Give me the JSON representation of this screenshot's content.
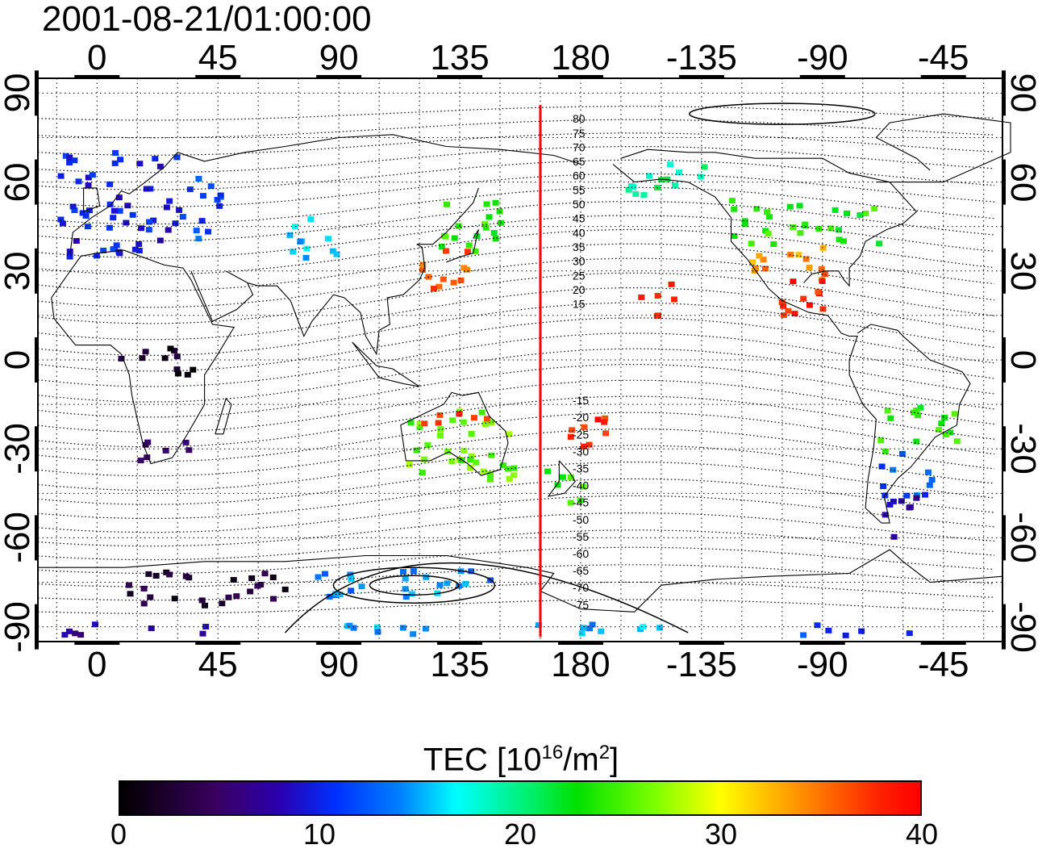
{
  "title": "2001-08-21/01:00:00",
  "map": {
    "projection": "equirectangular",
    "longitude_ticks": [
      "0",
      "45",
      "90",
      "135",
      "180",
      "-135",
      "-90",
      "-45"
    ],
    "latitude_ticks": [
      "90",
      "60",
      "30",
      "0",
      "-30",
      "-60",
      "-90"
    ],
    "longitude_range": [
      -22,
      337
    ],
    "latitude_range": [
      -95,
      95
    ],
    "grid": true,
    "terminator_longitude": 165,
    "terminator_color": "#ff0000",
    "contour_labels": [
      "80",
      "75",
      "70",
      "65",
      "60",
      "55",
      "50",
      "45",
      "40",
      "35",
      "30",
      "25",
      "20",
      "15",
      "-15",
      "-20",
      "-25",
      "-30",
      "-35",
      "-40",
      "-45",
      "-50",
      "-55",
      "-60",
      "-65",
      "-70",
      "-75"
    ]
  },
  "colorbar": {
    "label_main": "TEC  [10",
    "label_exp1": "16",
    "label_mid": "/m",
    "label_exp2": "2",
    "label_end": "]",
    "ticks": [
      "0",
      "10",
      "20",
      "30",
      "40"
    ],
    "range": [
      0,
      40
    ]
  },
  "tec_regions": [
    {
      "lon_min": -15,
      "lon_max": 30,
      "lat_min": 35,
      "lat_max": 72,
      "tec": 10
    },
    {
      "lon_min": 30,
      "lon_max": 45,
      "lat_min": 40,
      "lat_max": 65,
      "tec": 12
    },
    {
      "lon_min": 70,
      "lon_max": 90,
      "lat_min": 35,
      "lat_max": 50,
      "tec": 16
    },
    {
      "lon_min": 125,
      "lon_max": 150,
      "lat_min": 35,
      "lat_max": 55,
      "tec": 24
    },
    {
      "lon_min": 120,
      "lon_max": 145,
      "lat_min": 25,
      "lat_max": 38,
      "tec": 36
    },
    {
      "lon_min": 195,
      "lon_max": 225,
      "lat_min": 55,
      "lat_max": 68,
      "tec": 20
    },
    {
      "lon_min": 235,
      "lon_max": 290,
      "lat_min": 40,
      "lat_max": 55,
      "tec": 24
    },
    {
      "lon_min": 240,
      "lon_max": 270,
      "lat_min": 28,
      "lat_max": 40,
      "tec": 34
    },
    {
      "lon_min": 250,
      "lon_max": 275,
      "lat_min": 15,
      "lat_max": 30,
      "tec": 38
    },
    {
      "lon_min": 200,
      "lon_max": 215,
      "lat_min": 15,
      "lat_max": 27,
      "tec": 39
    },
    {
      "lon_min": 5,
      "lon_max": 35,
      "lat_min": -5,
      "lat_max": 5,
      "tec": 2
    },
    {
      "lon_min": 15,
      "lon_max": 35,
      "lat_min": -35,
      "lat_max": -25,
      "tec": 5
    },
    {
      "lon_min": 115,
      "lon_max": 155,
      "lat_min": -40,
      "lat_max": -15,
      "tec": 26
    },
    {
      "lon_min": 120,
      "lon_max": 145,
      "lat_min": -22,
      "lat_max": -15,
      "tec": 38
    },
    {
      "lon_min": 165,
      "lon_max": 180,
      "lat_min": -48,
      "lat_max": -35,
      "tec": 24
    },
    {
      "lon_min": 175,
      "lon_max": 195,
      "lat_min": -30,
      "lat_max": -18,
      "tec": 38
    },
    {
      "lon_min": 290,
      "lon_max": 320,
      "lat_min": -30,
      "lat_max": -15,
      "tec": 24
    },
    {
      "lon_min": 290,
      "lon_max": 310,
      "lat_min": -45,
      "lat_max": -30,
      "tec": 12
    },
    {
      "lon_min": 290,
      "lon_max": 305,
      "lat_min": -60,
      "lat_max": -45,
      "tec": 8
    },
    {
      "lon_min": 10,
      "lon_max": 70,
      "lat_min": -82,
      "lat_max": -70,
      "tec": 3
    },
    {
      "lon_min": 80,
      "lon_max": 150,
      "lat_min": -80,
      "lat_max": -70,
      "tec": 14
    },
    {
      "lon_min": 90,
      "lon_max": 210,
      "lat_min": -92,
      "lat_max": -88,
      "tec": 15
    },
    {
      "lon_min": 260,
      "lon_max": 305,
      "lat_min": -92,
      "lat_max": -88,
      "tec": 11
    },
    {
      "lon_min": -18,
      "lon_max": 40,
      "lat_min": -92,
      "lat_max": -88,
      "tec": 7
    }
  ]
}
